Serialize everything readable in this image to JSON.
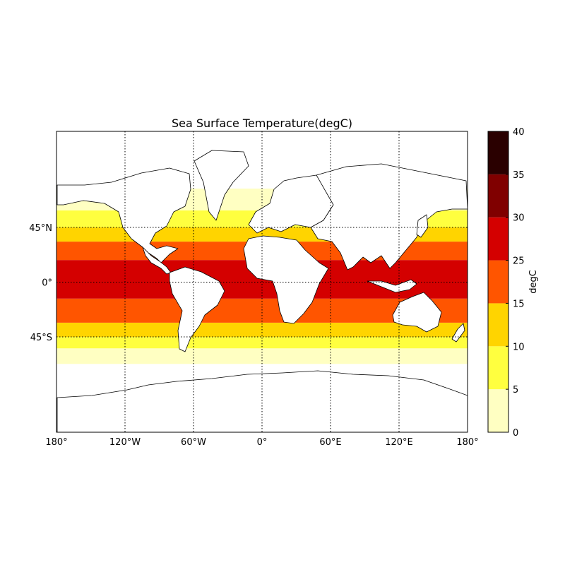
{
  "title": "Sea Surface Temperature(degC)",
  "colorbar": {
    "label": "degC",
    "levels": [
      0,
      5,
      10,
      15,
      25,
      30,
      35,
      40
    ],
    "tick_labels": [
      "0",
      "5",
      "10",
      "15",
      "25",
      "30",
      "35",
      "40"
    ],
    "colors": [
      "#ffffc2",
      "#ffff3f",
      "#ffd400",
      "#ff5500",
      "#d40000",
      "#800000",
      "#2a0000"
    ]
  },
  "axes": {
    "lon_range": [
      -180,
      180
    ],
    "x_ticks": [
      {
        "lon": -180,
        "label": "180°"
      },
      {
        "lon": -120,
        "label": "120°W"
      },
      {
        "lon": -60,
        "label": "60°W"
      },
      {
        "lon": 0,
        "label": "0°"
      },
      {
        "lon": 60,
        "label": "60°E"
      },
      {
        "lon": 120,
        "label": "120°E"
      },
      {
        "lon": 180,
        "label": "180°"
      }
    ],
    "y_ticks": [
      {
        "lat": 45,
        "label": "45°N"
      },
      {
        "lat": 0,
        "label": "0°"
      },
      {
        "lat": -45,
        "label": "45°S"
      }
    ],
    "grid": true
  },
  "chart_data": {
    "type": "heatmap",
    "title": "Sea Surface Temperature(degC)",
    "xlabel": "",
    "ylabel": "",
    "units": "degC",
    "levels": [
      0,
      5,
      10,
      15,
      25,
      30,
      35,
      40
    ],
    "zonal_bands": [
      {
        "lat_range": [
          -90,
          -60
        ],
        "range": "below 0"
      },
      {
        "lat_range": [
          -60,
          -52
        ],
        "range": "0-5"
      },
      {
        "lat_range": [
          -52,
          -45
        ],
        "range": "5-10"
      },
      {
        "lat_range": [
          -45,
          -35
        ],
        "range": "10-15"
      },
      {
        "lat_range": [
          -35,
          -15
        ],
        "range": "15-25"
      },
      {
        "lat_range": [
          -15,
          20
        ],
        "range": "25-30"
      },
      {
        "lat_range": [
          20,
          35
        ],
        "range": "15-25"
      },
      {
        "lat_range": [
          35,
          45
        ],
        "range": "10-15"
      },
      {
        "lat_range": [
          45,
          55
        ],
        "range": "5-10"
      },
      {
        "lat_range": [
          55,
          65
        ],
        "range": "0-5"
      }
    ]
  }
}
